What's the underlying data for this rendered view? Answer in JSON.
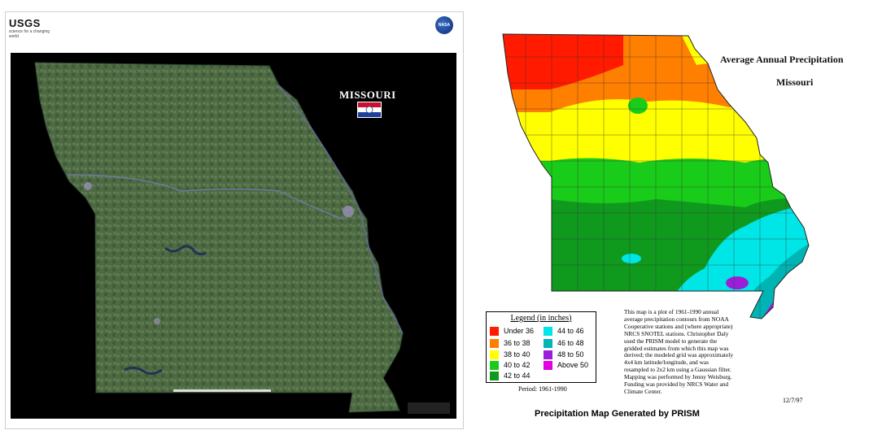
{
  "satellite": {
    "agency": "USGS",
    "agency_tagline": "science for a changing world",
    "space_agency": "NASA",
    "title": "MISSOURI"
  },
  "precipitation": {
    "title": "Average Annual Precipitation",
    "subtitle": "Missouri",
    "legend_title": "Legend (in inches)",
    "legend": [
      {
        "label": "Under 36",
        "color": "#ff1a00"
      },
      {
        "label": "36 to 38",
        "color": "#ff7f00"
      },
      {
        "label": "38 to 40",
        "color": "#ffff00"
      },
      {
        "label": "40 to 42",
        "color": "#19cc19"
      },
      {
        "label": "42 to 44",
        "color": "#0f9a1e"
      },
      {
        "label": "44 to 46",
        "color": "#00e5e5"
      },
      {
        "label": "46 to 48",
        "color": "#00b4b4"
      },
      {
        "label": "48 to 50",
        "color": "#9b1fd6"
      },
      {
        "label": "Above 50",
        "color": "#e000e0"
      }
    ],
    "period": "Period: 1961-1990",
    "note": "This map is a plot of 1961-1990 annual\naverage precipitation contours from NOAA\nCooperative stations and (where appropriate)\nNRCS SNOTEL stations. Christopher Daly\nused the PRISM model to generate the\ngridded estimates from which this map was\nderived; the modeled grid was approximately\n4x4 km latitude/longitude, and was\nresampled to 2x2 km using a Gaussian filter.\nMapping was performed by Jenny Weisburg.\nFunding was provided by NRCS Water and\nClimate Center.",
    "date": "12/7/97",
    "caption": "Precipitation Map Generated by PRISM"
  }
}
